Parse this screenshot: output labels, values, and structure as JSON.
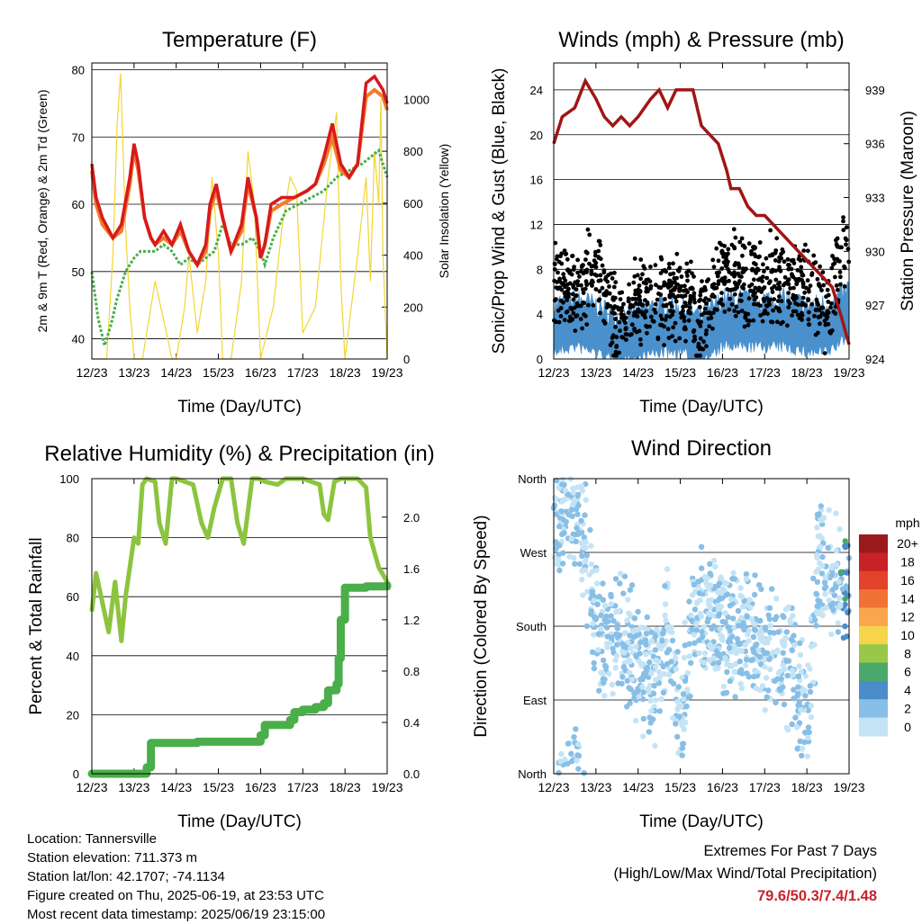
{
  "footer": {
    "location": "Location: Tannersville",
    "elevation": "Station elevation: 711.373 m",
    "latlon": "Station lat/lon: 42.1707; -74.1134",
    "created": "Figure created on Thu, 2025-06-19, at 23:53 UTC",
    "recent": "Most recent data timestamp: 2025/06/19 23:15:00",
    "extremes_title": "Extremes For Past 7 Days",
    "extremes_subtitle": "(High/Low/Max Wind/Total Precipitation)",
    "extremes_values": "79.6/50.3/7.4/1.48"
  },
  "colors": {
    "t2m": "#d7191c",
    "t9m": "#f07c2a",
    "td": "#4aae4a",
    "solar": "#f2d533",
    "sonic": "#4a90cc",
    "gust": "#000000",
    "pressure": "#a11515",
    "rh": "#8cc43f",
    "precip": "#4aae4a"
  },
  "chart_data": [
    {
      "type": "line",
      "title": "Temperature (F)",
      "xlabel": "Time (Day/UTC)",
      "ylabel": "2m & 9m T (Red, Orange) & 2m Td (Green)",
      "ylabel_right": "Solar Insolation (Yellow)",
      "x_ticks": [
        "12/23",
        "13/23",
        "14/23",
        "15/23",
        "16/23",
        "17/23",
        "18/23",
        "19/23"
      ],
      "ylim": [
        37,
        81
      ],
      "y_ticks": [
        40,
        50,
        60,
        70,
        80
      ],
      "y2lim": [
        0,
        1140
      ],
      "y2_ticks": [
        0,
        200,
        400,
        600,
        800,
        1000
      ],
      "grid": "horizontal",
      "series": [
        {
          "key": "t2m",
          "x": [
            0,
            0.1,
            0.25,
            0.5,
            0.7,
            0.9,
            1.0,
            1.1,
            1.25,
            1.4,
            1.5,
            1.7,
            1.9,
            2.1,
            2.3,
            2.5,
            2.7,
            2.8,
            2.95,
            3.1,
            3.3,
            3.55,
            3.7,
            3.9,
            4.0,
            4.1,
            4.25,
            4.5,
            4.8,
            5.1,
            5.3,
            5.5,
            5.7,
            5.9,
            6.1,
            6.3,
            6.5,
            6.7,
            6.9,
            7.0
          ],
          "y": [
            66,
            61,
            58,
            55,
            57,
            64,
            69,
            66,
            58,
            55,
            54,
            56,
            54,
            57,
            53,
            51,
            54,
            60,
            63,
            58,
            53,
            57,
            64,
            58,
            52,
            54,
            60,
            61,
            61,
            62,
            63,
            67,
            72,
            66,
            64,
            66,
            78,
            79,
            77,
            75
          ]
        },
        {
          "key": "t9m",
          "x": [
            0,
            0.1,
            0.25,
            0.5,
            0.7,
            0.9,
            1.0,
            1.1,
            1.25,
            1.4,
            1.5,
            1.7,
            1.9,
            2.1,
            2.3,
            2.5,
            2.7,
            2.8,
            2.95,
            3.1,
            3.3,
            3.55,
            3.7,
            3.9,
            4.0,
            4.1,
            4.25,
            4.5,
            4.8,
            5.1,
            5.3,
            5.5,
            5.7,
            5.9,
            6.1,
            6.3,
            6.5,
            6.7,
            6.9,
            7.0
          ],
          "y": [
            65,
            60,
            57,
            55,
            56,
            63,
            68,
            65,
            58,
            55,
            54,
            55,
            54,
            56,
            53,
            51,
            53,
            59,
            62,
            58,
            53,
            56,
            63,
            58,
            52,
            54,
            59,
            60,
            61,
            62,
            63,
            66,
            70,
            65,
            64,
            66,
            76,
            77,
            76,
            74
          ]
        },
        {
          "key": "td",
          "x": [
            0,
            0.15,
            0.3,
            0.45,
            0.6,
            0.8,
            1.0,
            1.15,
            1.35,
            1.5,
            1.7,
            1.9,
            2.1,
            2.3,
            2.5,
            2.7,
            2.9,
            3.1,
            3.3,
            3.55,
            3.8,
            4.0,
            4.1,
            4.3,
            4.6,
            4.9,
            5.2,
            5.5,
            5.8,
            6.1,
            6.4,
            6.6,
            6.8,
            6.9,
            7.0
          ],
          "y": [
            50,
            43,
            39,
            42,
            46,
            50,
            52,
            53,
            53,
            53,
            54,
            53,
            51,
            52,
            51,
            52,
            53,
            57,
            54,
            54,
            55,
            53,
            51,
            55,
            59,
            60,
            61,
            62,
            64,
            65,
            66,
            67,
            68,
            66,
            64
          ]
        },
        {
          "key": "solar",
          "x": [
            0,
            0.35,
            0.5,
            0.6,
            0.68,
            0.8,
            0.9,
            1.0,
            1.1,
            1.2,
            1.5,
            1.7,
            1.9,
            2.0,
            2.2,
            2.3,
            2.5,
            2.7,
            2.85,
            3.0,
            3.1,
            3.3,
            3.55,
            3.7,
            3.85,
            4.0,
            4.3,
            4.5,
            4.7,
            4.85,
            5.0,
            5.3,
            5.6,
            5.8,
            5.9,
            6.0,
            6.3,
            6.5,
            6.6,
            6.7,
            6.8,
            6.85,
            6.9,
            7.0
          ],
          "y": [
            0,
            0,
            400,
            900,
            1100,
            500,
            200,
            0,
            0,
            0,
            300,
            150,
            0,
            0,
            200,
            400,
            100,
            300,
            700,
            400,
            0,
            0,
            300,
            800,
            600,
            0,
            200,
            500,
            700,
            650,
            100,
            200,
            700,
            950,
            300,
            0,
            400,
            700,
            300,
            800,
            600,
            1000,
            400,
            0
          ]
        }
      ]
    },
    {
      "type": "scatter",
      "title": "Winds (mph) & Pressure (mb)",
      "xlabel": "Time (Day/UTC)",
      "ylabel": "Sonic/Prop Wind & Gust (Blue, Black)",
      "ylabel_right": "Station Pressure (Maroon)",
      "x_ticks": [
        "12/23",
        "13/23",
        "14/23",
        "15/23",
        "16/23",
        "17/23",
        "18/23",
        "19/23"
      ],
      "ylim": [
        0,
        26.4
      ],
      "y_ticks": [
        0,
        4,
        8,
        12,
        16,
        20,
        24
      ],
      "y2lim": [
        924,
        940.5
      ],
      "y2_ticks": [
        924,
        927,
        930,
        933,
        936,
        939
      ],
      "grid": "horizontal",
      "pressure": {
        "x": [
          0,
          0.2,
          0.5,
          0.75,
          1.0,
          1.2,
          1.4,
          1.6,
          1.8,
          2.0,
          2.3,
          2.5,
          2.7,
          2.9,
          3.1,
          3.3,
          3.5,
          3.7,
          3.9,
          4.1,
          4.2,
          4.4,
          4.6,
          4.8,
          5.0,
          5.2,
          5.4,
          5.6,
          5.8,
          6.0,
          6.2,
          6.4,
          6.6,
          6.8,
          7.0
        ],
        "y": [
          936,
          937.5,
          938,
          939.5,
          938.5,
          937.5,
          937,
          937.5,
          937,
          937.5,
          938.5,
          939,
          938,
          939,
          939,
          939,
          937,
          936.5,
          936,
          934.5,
          933.5,
          933.5,
          932.5,
          932,
          932,
          931.5,
          931,
          930.5,
          930,
          929.5,
          929,
          928.5,
          928,
          926.5,
          924.8
        ]
      },
      "sonic_mean": {
        "x": [
          0,
          0.5,
          1.0,
          1.5,
          2.0,
          2.5,
          3.0,
          3.5,
          4.0,
          4.5,
          5.0,
          5.5,
          6.0,
          6.5,
          7.0
        ],
        "y": [
          2.5,
          3,
          2.5,
          1.5,
          2,
          2.5,
          2.5,
          1.5,
          3,
          3,
          3,
          3,
          2.5,
          2.5,
          4
        ]
      },
      "gust_mean": {
        "x": [
          0,
          0.5,
          1.0,
          1.5,
          2.0,
          2.5,
          3.0,
          3.5,
          4.0,
          4.5,
          5.0,
          5.5,
          6.0,
          6.5,
          7.0
        ],
        "y": [
          7,
          6,
          8,
          3,
          5,
          5,
          6,
          3,
          8,
          7,
          7,
          7,
          6,
          4,
          11
        ]
      }
    },
    {
      "type": "line",
      "title": "Relative Humidity (%) & Precipitation (in)",
      "xlabel": "Time (Day/UTC)",
      "ylabel": "Percent & Total Rainfall",
      "x_ticks": [
        "12/23",
        "13/23",
        "14/23",
        "15/23",
        "16/23",
        "17/23",
        "18/23",
        "19/23"
      ],
      "ylim": [
        0,
        100
      ],
      "y_ticks": [
        0,
        20,
        40,
        60,
        80,
        100
      ],
      "y2lim": [
        0,
        2.3
      ],
      "y2_ticks": [
        "0.0",
        "0.4",
        "0.8",
        "1.2",
        "1.6",
        "2.0"
      ],
      "grid": "horizontal",
      "series": [
        {
          "key": "rh",
          "name": "Relative Humidity (%)",
          "x": [
            0,
            0.1,
            0.25,
            0.4,
            0.55,
            0.7,
            0.8,
            0.9,
            1.0,
            1.1,
            1.2,
            1.3,
            1.5,
            1.6,
            1.75,
            1.9,
            2.0,
            2.2,
            2.4,
            2.6,
            2.75,
            2.9,
            3.1,
            3.3,
            3.45,
            3.6,
            3.8,
            3.95,
            4.1,
            4.4,
            4.6,
            4.8,
            5.0,
            5.2,
            5.4,
            5.5,
            5.6,
            5.75,
            5.9,
            6.0,
            6.3,
            6.5,
            6.6,
            6.8,
            7.0
          ],
          "y": [
            55,
            68,
            58,
            48,
            65,
            45,
            60,
            70,
            80,
            78,
            98,
            100,
            99,
            85,
            78,
            100,
            100,
            99,
            98,
            85,
            80,
            90,
            100,
            100,
            85,
            78,
            100,
            100,
            99,
            98,
            100,
            100,
            100,
            99,
            98,
            88,
            86,
            99,
            100,
            100,
            100,
            97,
            80,
            70,
            65
          ]
        },
        {
          "key": "precip",
          "name": "Precipitation (in)",
          "x": [
            0,
            1.2,
            1.3,
            1.4,
            2.0,
            2.5,
            3.0,
            3.5,
            3.9,
            4.0,
            4.1,
            4.5,
            4.7,
            4.8,
            5.0,
            5.3,
            5.5,
            5.6,
            5.8,
            5.85,
            5.9,
            6.0,
            6.5,
            7.0
          ],
          "y": [
            0,
            0,
            0.05,
            0.24,
            0.24,
            0.25,
            0.25,
            0.25,
            0.25,
            0.3,
            0.38,
            0.38,
            0.42,
            0.48,
            0.5,
            0.52,
            0.55,
            0.65,
            0.7,
            0.9,
            1.2,
            1.45,
            1.46,
            1.47
          ]
        }
      ]
    },
    {
      "type": "scatter",
      "title": "Wind Direction",
      "xlabel": "Time (Day/UTC)",
      "ylabel": "Direction (Colored By Speed)",
      "x_ticks": [
        "12/23",
        "13/23",
        "14/23",
        "15/23",
        "16/23",
        "17/23",
        "18/23",
        "19/23"
      ],
      "y_ticks": [
        "North",
        "East",
        "South",
        "West",
        "North"
      ],
      "ylim": [
        0,
        360
      ],
      "grid": "horizontal",
      "direction_mean": {
        "x": [
          0,
          0.3,
          0.6,
          0.9,
          1.2,
          1.5,
          1.8,
          2.1,
          2.4,
          2.7,
          3.0,
          3.3,
          3.6,
          3.9,
          4.2,
          4.5,
          4.8,
          5.1,
          5.4,
          5.7,
          6.0,
          6.3,
          6.6,
          6.9,
          7.0
        ],
        "y": [
          300,
          330,
          340,
          200,
          160,
          170,
          150,
          120,
          110,
          180,
          60,
          180,
          210,
          180,
          170,
          180,
          160,
          150,
          140,
          120,
          60,
          270,
          240,
          230,
          210
        ]
      },
      "colorbar": {
        "unit": "mph",
        "labels": [
          "20+",
          "18",
          "16",
          "14",
          "12",
          "10",
          "8",
          "6",
          "4",
          "2",
          "0"
        ],
        "colors": [
          "#99191c",
          "#c82228",
          "#e3432a",
          "#f07234",
          "#f9a64e",
          "#f6d44b",
          "#97c84a",
          "#4aa96a",
          "#4b8dc8",
          "#88bfe6",
          "#c4e4f6"
        ]
      }
    }
  ]
}
